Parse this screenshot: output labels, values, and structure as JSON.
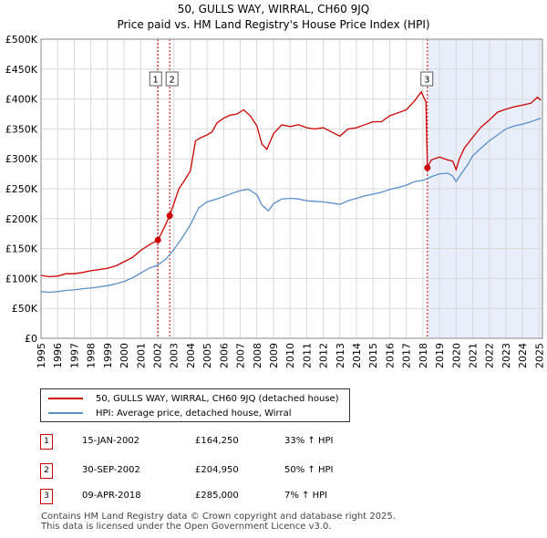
{
  "chart_data": {
    "type": "line",
    "title": "50, GULLS WAY, WIRRAL, CH60 9JQ",
    "subtitle": "Price paid vs. HM Land Registry's House Price Index (HPI)",
    "xlim": [
      1995,
      2025.2
    ],
    "ylim": [
      0,
      500000
    ],
    "x_ticks": [
      1995,
      1996,
      1997,
      1998,
      1999,
      2000,
      2001,
      2002,
      2003,
      2004,
      2005,
      2006,
      2007,
      2008,
      2009,
      2010,
      2011,
      2012,
      2013,
      2014,
      2015,
      2016,
      2017,
      2018,
      2019,
      2020,
      2021,
      2022,
      2023,
      2024,
      2025
    ],
    "y_ticks": [
      {
        "value": 0,
        "label": "£0"
      },
      {
        "value": 50000,
        "label": "£50K"
      },
      {
        "value": 100000,
        "label": "£100K"
      },
      {
        "value": 150000,
        "label": "£150K"
      },
      {
        "value": 200000,
        "label": "£200K"
      },
      {
        "value": 250000,
        "label": "£250K"
      },
      {
        "value": 300000,
        "label": "£300K"
      },
      {
        "value": 350000,
        "label": "£350K"
      },
      {
        "value": 400000,
        "label": "£400K"
      },
      {
        "value": 450000,
        "label": "£450K"
      },
      {
        "value": 500000,
        "label": "£500K"
      }
    ],
    "colors": {
      "property": "#cc0000",
      "hpi": "#5b8fc9",
      "shade": "#e8eefa",
      "vline": "#cc0000"
    },
    "shaded_region": [
      2018.27,
      2025.2
    ],
    "series": [
      {
        "name": "50, GULLS WAY, WIRRAL, CH60 9JQ (detached house)",
        "color": "#cc0000",
        "points": [
          [
            1995,
            105000
          ],
          [
            1995.5,
            103000
          ],
          [
            1996,
            104000
          ],
          [
            1996.5,
            108000
          ],
          [
            1997,
            108000
          ],
          [
            1997.5,
            110000
          ],
          [
            1998,
            113000
          ],
          [
            1998.5,
            115000
          ],
          [
            1999,
            117000
          ],
          [
            1999.5,
            121000
          ],
          [
            2000,
            128000
          ],
          [
            2000.5,
            135000
          ],
          [
            2001,
            147000
          ],
          [
            2001.5,
            156000
          ],
          [
            2002.04,
            164250
          ],
          [
            2002.3,
            178000
          ],
          [
            2002.75,
            204950
          ],
          [
            2003,
            225000
          ],
          [
            2003.3,
            250000
          ],
          [
            2003.6,
            262000
          ],
          [
            2004,
            280000
          ],
          [
            2004.3,
            330000
          ],
          [
            2004.6,
            335000
          ],
          [
            2005,
            340000
          ],
          [
            2005.3,
            345000
          ],
          [
            2005.6,
            360000
          ],
          [
            2006,
            368000
          ],
          [
            2006.4,
            373000
          ],
          [
            2006.8,
            375000
          ],
          [
            2007.2,
            382000
          ],
          [
            2007.6,
            372000
          ],
          [
            2008,
            355000
          ],
          [
            2008.3,
            325000
          ],
          [
            2008.6,
            316000
          ],
          [
            2009,
            342000
          ],
          [
            2009.5,
            357000
          ],
          [
            2010,
            354000
          ],
          [
            2010.5,
            357000
          ],
          [
            2011,
            352000
          ],
          [
            2011.5,
            350000
          ],
          [
            2012,
            352000
          ],
          [
            2012.5,
            345000
          ],
          [
            2013,
            338000
          ],
          [
            2013.5,
            350000
          ],
          [
            2014,
            352000
          ],
          [
            2014.5,
            357000
          ],
          [
            2015,
            362000
          ],
          [
            2015.5,
            362000
          ],
          [
            2016,
            372000
          ],
          [
            2016.5,
            377000
          ],
          [
            2017,
            382000
          ],
          [
            2017.5,
            397000
          ],
          [
            2017.9,
            412000
          ],
          [
            2018.18,
            395000
          ],
          [
            2018.27,
            285000
          ],
          [
            2018.5,
            298000
          ],
          [
            2019,
            303000
          ],
          [
            2019.5,
            298000
          ],
          [
            2019.8,
            296000
          ],
          [
            2020,
            282000
          ],
          [
            2020.2,
            300000
          ],
          [
            2020.5,
            318000
          ],
          [
            2021,
            336000
          ],
          [
            2021.5,
            353000
          ],
          [
            2022,
            365000
          ],
          [
            2022.5,
            378000
          ],
          [
            2023,
            383000
          ],
          [
            2023.5,
            387000
          ],
          [
            2024,
            390000
          ],
          [
            2024.5,
            393000
          ],
          [
            2024.9,
            403000
          ],
          [
            2025.1,
            398000
          ]
        ]
      },
      {
        "name": "HPI: Average price, detached house, Wirral",
        "color": "#5b8fc9",
        "points": [
          [
            1995,
            78000
          ],
          [
            1995.5,
            77000
          ],
          [
            1996,
            78000
          ],
          [
            1996.5,
            80000
          ],
          [
            1997,
            81000
          ],
          [
            1997.5,
            83000
          ],
          [
            1998,
            84000
          ],
          [
            1998.5,
            86000
          ],
          [
            1999,
            88000
          ],
          [
            1999.5,
            91000
          ],
          [
            2000,
            95000
          ],
          [
            2000.5,
            101000
          ],
          [
            2001,
            109000
          ],
          [
            2001.5,
            117000
          ],
          [
            2002,
            122000
          ],
          [
            2002.5,
            132000
          ],
          [
            2003,
            148000
          ],
          [
            2003.5,
            168000
          ],
          [
            2004,
            190000
          ],
          [
            2004.5,
            218000
          ],
          [
            2005,
            228000
          ],
          [
            2005.5,
            232000
          ],
          [
            2006,
            237000
          ],
          [
            2006.5,
            242000
          ],
          [
            2007,
            247000
          ],
          [
            2007.5,
            249000
          ],
          [
            2008,
            240000
          ],
          [
            2008.3,
            223000
          ],
          [
            2008.7,
            213000
          ],
          [
            2009,
            225000
          ],
          [
            2009.5,
            233000
          ],
          [
            2010,
            234000
          ],
          [
            2010.5,
            233000
          ],
          [
            2011,
            230000
          ],
          [
            2011.5,
            229000
          ],
          [
            2012,
            228000
          ],
          [
            2012.5,
            226000
          ],
          [
            2013,
            224000
          ],
          [
            2013.5,
            230000
          ],
          [
            2014,
            234000
          ],
          [
            2014.5,
            238000
          ],
          [
            2015,
            241000
          ],
          [
            2015.5,
            244000
          ],
          [
            2016,
            249000
          ],
          [
            2016.5,
            252000
          ],
          [
            2017,
            256000
          ],
          [
            2017.5,
            262000
          ],
          [
            2018,
            264000
          ],
          [
            2018.5,
            270000
          ],
          [
            2019,
            275000
          ],
          [
            2019.5,
            276000
          ],
          [
            2019.8,
            271000
          ],
          [
            2020,
            262000
          ],
          [
            2020.3,
            275000
          ],
          [
            2020.7,
            290000
          ],
          [
            2021,
            305000
          ],
          [
            2021.5,
            318000
          ],
          [
            2022,
            330000
          ],
          [
            2022.5,
            340000
          ],
          [
            2023,
            350000
          ],
          [
            2023.5,
            355000
          ],
          [
            2024,
            358000
          ],
          [
            2024.5,
            362000
          ],
          [
            2025.1,
            368000
          ]
        ]
      }
    ],
    "transactions": [
      {
        "label": "1",
        "date": "15-JAN-2002",
        "x": 2002.04,
        "price": 164250,
        "price_label": "£164,250",
        "hpi_change": "33% ↑ HPI"
      },
      {
        "label": "2",
        "date": "30-SEP-2002",
        "x": 2002.75,
        "price": 204950,
        "price_label": "£204,950",
        "hpi_change": "50% ↑ HPI"
      },
      {
        "label": "3",
        "date": "09-APR-2018",
        "x": 2018.27,
        "price": 285000,
        "price_label": "£285,000",
        "hpi_change": "7% ↑ HPI"
      }
    ]
  },
  "legend": {
    "property_label": "50, GULLS WAY, WIRRAL, CH60 9JQ (detached house)",
    "hpi_label": "HPI: Average price, detached house, Wirral"
  },
  "footer": {
    "line1": "Contains HM Land Registry data © Crown copyright and database right 2025.",
    "line2": "This data is licensed under the Open Government Licence v3.0."
  }
}
